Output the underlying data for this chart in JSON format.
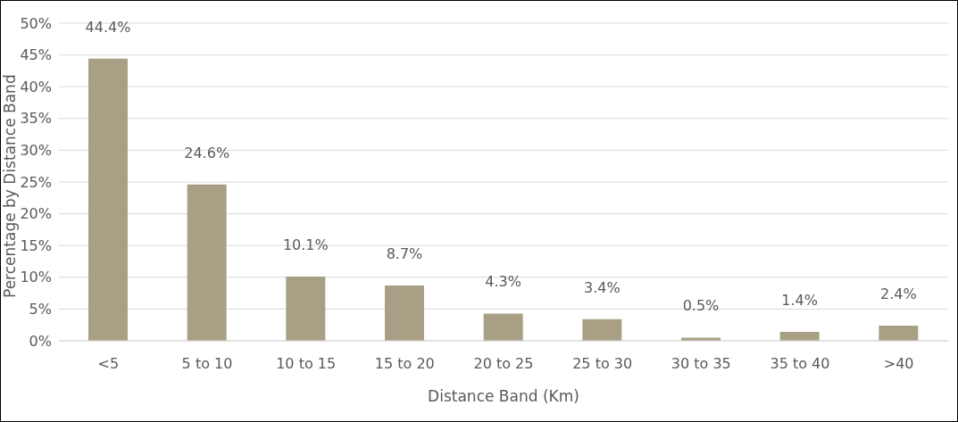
{
  "chart_data": {
    "type": "bar",
    "xlabel": "Distance Band (Km)",
    "ylabel": "Percentage by Distance Band",
    "categories": [
      "<5",
      "5 to 10",
      "10 to 15",
      "15 to 20",
      "20 to 25",
      "25 to 30",
      "30 to 35",
      "35 to 40",
      ">40"
    ],
    "values": [
      44.4,
      24.6,
      10.1,
      8.7,
      4.3,
      3.4,
      0.5,
      1.4,
      2.4
    ],
    "value_labels": [
      "44.4%",
      "24.6%",
      "10.1%",
      "8.7%",
      "4.3%",
      "3.4%",
      "0.5%",
      "1.4%",
      "2.4%"
    ],
    "color": "#a89f85",
    "ylim": [
      0,
      50
    ],
    "yticks": [
      {
        "value": 0,
        "label": "0%"
      },
      {
        "value": 5,
        "label": "5%"
      },
      {
        "value": 10,
        "label": "10%"
      },
      {
        "value": 15,
        "label": "15%"
      },
      {
        "value": 20,
        "label": "20%"
      },
      {
        "value": 25,
        "label": "25%"
      },
      {
        "value": 30,
        "label": "30%"
      },
      {
        "value": 35,
        "label": "35%"
      },
      {
        "value": 40,
        "label": "40%"
      },
      {
        "value": 45,
        "label": "45%"
      },
      {
        "value": 50,
        "label": "50%"
      }
    ],
    "grid": "y"
  }
}
